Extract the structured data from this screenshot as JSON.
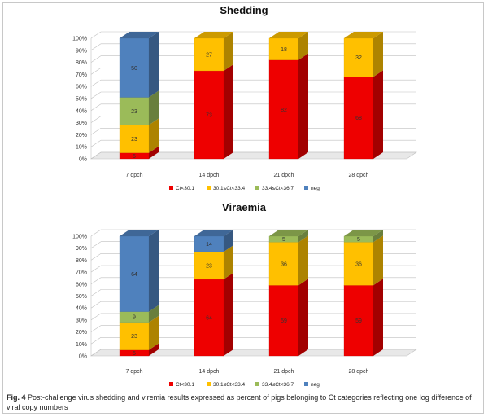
{
  "caption": {
    "label": "Fig. 4",
    "text": "Post-challenge virus shedding and viremia results expressed as percent of pigs belonging to Ct categories reflecting one log difference of viral copy numbers"
  },
  "colors": {
    "Ct<30.1": "#ee0000",
    "30.1≤Ct<33.4": "#ffc000",
    "33.4≤Ct<36.7": "#9bbb59",
    "neg": "#4f81bd"
  },
  "chart_data": [
    {
      "type": "bar",
      "stacked": true,
      "title": "Shedding",
      "categories": [
        "7 dpch",
        "14 dpch",
        "21 dpch",
        "28 dpch"
      ],
      "yticks": [
        "0%",
        "10%",
        "20%",
        "30%",
        "40%",
        "50%",
        "60%",
        "70%",
        "80%",
        "90%",
        "100%"
      ],
      "ylim": [
        0,
        100
      ],
      "legend_position": "bottom",
      "series": [
        {
          "name": "Ct<30.1",
          "values": [
            5,
            73,
            82,
            68
          ]
        },
        {
          "name": "30.1≤Ct<33.4",
          "values": [
            23,
            27,
            18,
            32
          ]
        },
        {
          "name": "33.4≤Ct<36.7",
          "values": [
            23,
            0,
            0,
            0
          ]
        },
        {
          "name": "neg",
          "values": [
            50,
            0,
            0,
            0
          ]
        }
      ]
    },
    {
      "type": "bar",
      "stacked": true,
      "title": "Viraemia",
      "categories": [
        "7 dpch",
        "14 dpch",
        "21 dpch",
        "28 dpch"
      ],
      "yticks": [
        "0%",
        "10%",
        "20%",
        "30%",
        "40%",
        "50%",
        "60%",
        "70%",
        "80%",
        "90%",
        "100%"
      ],
      "ylim": [
        0,
        100
      ],
      "legend_position": "bottom",
      "series": [
        {
          "name": "Ct<30.1",
          "values": [
            5,
            64,
            59,
            59
          ]
        },
        {
          "name": "30.1≤Ct<33.4",
          "values": [
            23,
            23,
            36,
            36
          ]
        },
        {
          "name": "33.4≤Ct<36.7",
          "values": [
            9,
            0,
            5,
            5
          ]
        },
        {
          "name": "neg",
          "values": [
            64,
            14,
            0,
            0
          ]
        }
      ]
    }
  ]
}
